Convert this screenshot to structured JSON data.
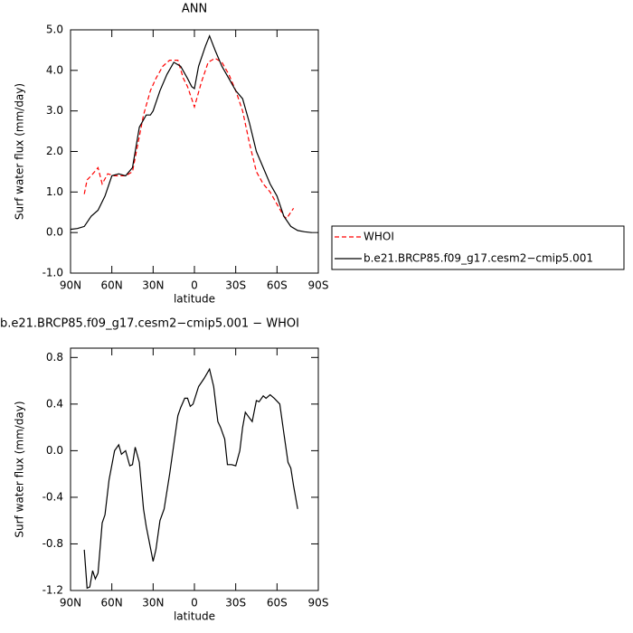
{
  "chart_data": [
    {
      "type": "line",
      "title": "ANN",
      "xlabel": "latitude",
      "ylabel": "Surf water flux (mm/day)",
      "xlim": [
        90,
        -90
      ],
      "ylim": [
        -1,
        5
      ],
      "xticks": [
        {
          "value": 90,
          "label": "90N"
        },
        {
          "value": 60,
          "label": "60N"
        },
        {
          "value": 30,
          "label": "30N"
        },
        0,
        {
          "value": -30,
          "label": "30S"
        },
        {
          "value": -60,
          "label": "60S"
        },
        {
          "value": -90,
          "label": "90S"
        }
      ],
      "yticks": [
        {
          "value": -1,
          "label": "-1.0"
        },
        {
          "value": 0,
          "label": "0.0"
        },
        {
          "value": 1,
          "label": "1.0"
        },
        {
          "value": 2,
          "label": "2.0"
        },
        {
          "value": 3,
          "label": "3.0"
        },
        {
          "value": 4,
          "label": "4.0"
        },
        {
          "value": 5,
          "label": "5.0"
        }
      ],
      "legend": "right",
      "series": [
        {
          "name": "WHOI",
          "color": "#ff0000",
          "dashed": true,
          "x": [
            80,
            78,
            75,
            70,
            67,
            63,
            58,
            50,
            45,
            37,
            32,
            28,
            23,
            18,
            12,
            8,
            5,
            0,
            -5,
            -10,
            -15,
            -20,
            -25,
            -30,
            -35,
            -40,
            -45,
            -50,
            -55,
            -60,
            -65,
            -67,
            -72
          ],
          "values": [
            0.95,
            1.3,
            1.4,
            1.6,
            1.2,
            1.45,
            1.4,
            1.4,
            1.5,
            2.9,
            3.5,
            3.8,
            4.1,
            4.25,
            4.25,
            3.8,
            3.6,
            3.1,
            3.7,
            4.2,
            4.3,
            4.2,
            3.9,
            3.5,
            3.0,
            2.2,
            1.5,
            1.2,
            1.0,
            0.7,
            0.4,
            0.35,
            0.6
          ]
        },
        {
          "name": "b.e21.BRCP85.f09_g17.cesm2−cmip5.001",
          "color": "#000000",
          "dashed": false,
          "x": [
            90,
            85,
            80,
            75,
            70,
            65,
            60,
            55,
            50,
            45,
            40,
            35,
            32,
            30,
            25,
            20,
            15,
            10,
            5,
            2,
            0,
            -3,
            -8,
            -11,
            -15,
            -20,
            -25,
            -30,
            -35,
            -40,
            -45,
            -50,
            -55,
            -60,
            -65,
            -70,
            -75,
            -80,
            -85
          ],
          "values": [
            0.08,
            0.1,
            0.15,
            0.4,
            0.55,
            0.9,
            1.4,
            1.45,
            1.4,
            1.6,
            2.6,
            2.9,
            2.9,
            3.0,
            3.5,
            3.9,
            4.2,
            4.1,
            3.8,
            3.6,
            3.55,
            4.1,
            4.6,
            4.85,
            4.5,
            4.1,
            3.8,
            3.5,
            3.3,
            2.7,
            2.0,
            1.6,
            1.2,
            0.9,
            0.4,
            0.15,
            0.05,
            0.02,
            0.0
          ]
        }
      ]
    },
    {
      "type": "line",
      "title": "b.e21.BRCP85.f09_g17.cesm2−cmip5.001 − WHOI",
      "xlabel": "latitude",
      "ylabel": "Surf water flux (mm/day)",
      "xlim": [
        90,
        -90
      ],
      "ylim": [
        -1.2,
        0.88
      ],
      "xticks": [
        {
          "value": 90,
          "label": "90N"
        },
        {
          "value": 60,
          "label": "60N"
        },
        {
          "value": 30,
          "label": "30N"
        },
        0,
        {
          "value": -30,
          "label": "30S"
        },
        {
          "value": -60,
          "label": "60S"
        },
        {
          "value": -90,
          "label": "90S"
        }
      ],
      "yticks": [
        {
          "value": -1.2,
          "label": "-1.2"
        },
        {
          "value": -0.8,
          "label": "-0.8"
        },
        {
          "value": -0.4,
          "label": "-0.4"
        },
        {
          "value": 0,
          "label": "0.0"
        },
        0.4,
        0.8
      ],
      "series": [
        {
          "color": "#000000",
          "dashed": false,
          "x": [
            80,
            78,
            76,
            74,
            72,
            70,
            67,
            65,
            62,
            58,
            55,
            53,
            50,
            47,
            45,
            43,
            40,
            37,
            35,
            30,
            28,
            25,
            22,
            18,
            12,
            10,
            7,
            5,
            3,
            1,
            -3,
            -7,
            -11,
            -14,
            -17,
            -19,
            -22,
            -24,
            -27,
            -30,
            -33,
            -35,
            -37,
            -40,
            -42,
            -45,
            -47,
            -50,
            -52,
            -55,
            -58,
            -62,
            -65,
            -68,
            -70,
            -72,
            -75
          ],
          "values": [
            -0.85,
            -1.18,
            -1.17,
            -1.03,
            -1.1,
            -1.05,
            -0.62,
            -0.55,
            -0.25,
            0.0,
            0.05,
            -0.03,
            0.0,
            -0.13,
            -0.12,
            0.03,
            -0.1,
            -0.5,
            -0.65,
            -0.95,
            -0.85,
            -0.6,
            -0.5,
            -0.2,
            0.3,
            0.37,
            0.45,
            0.45,
            0.38,
            0.4,
            0.55,
            0.62,
            0.7,
            0.55,
            0.25,
            0.2,
            0.1,
            -0.12,
            -0.12,
            -0.13,
            0.0,
            0.2,
            0.33,
            0.28,
            0.25,
            0.43,
            0.42,
            0.47,
            0.45,
            0.48,
            0.45,
            0.4,
            0.15,
            -0.1,
            -0.15,
            -0.3,
            -0.5
          ]
        }
      ]
    }
  ]
}
